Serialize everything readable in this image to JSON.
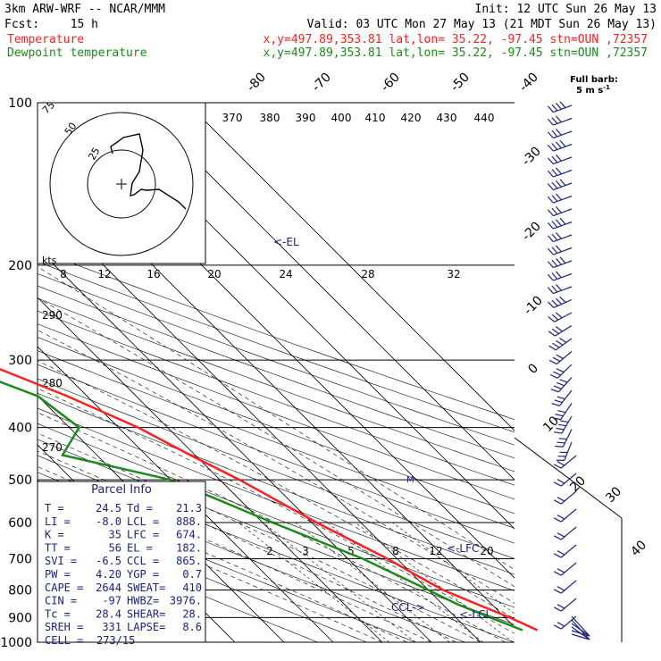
{
  "header": {
    "model": "3km ARW-WRF -- NCAR/MMM",
    "init": "Init: 12 UTC Sun 26 May 13",
    "fcst_label": "Fcst:",
    "fcst_value": "15 h",
    "valid": "Valid: 03 UTC Mon 27 May 13 (21 MDT Sun 26 May 13)",
    "temp_label": "Temperature",
    "dew_label": "Dewpoint temperature",
    "location": "x,y=497.89,353.81   lat,lon= 35.22, -97.45   stn=OUN ,72357"
  },
  "colors": {
    "temperature": "#ff2020",
    "dewpoint": "#1a8a1a",
    "grid": "#000000",
    "info_text": "#1a237e",
    "barb": "#1a237e"
  },
  "barb_legend": {
    "title": "Full barb:",
    "value": "5 m s",
    "exp": "-1"
  },
  "chart_data": {
    "type": "skew-t log-p",
    "pressure_levels": [
      100,
      200,
      300,
      400,
      500,
      600,
      700,
      800,
      900,
      1000
    ],
    "isotherm_labels": [
      "-80",
      "-70",
      "-60",
      "-50",
      "-40",
      "-30",
      "-20",
      "-10",
      "0",
      "10",
      "20",
      "30",
      "40"
    ],
    "theta_labels": [
      "370",
      "380",
      "390",
      "400",
      "410",
      "420",
      "430",
      "440"
    ],
    "mixing_ratio_labels": [
      "2",
      "3",
      "5",
      "8",
      "12",
      "20"
    ],
    "temperature_profile": [
      {
        "p": 100,
        "t": -65
      },
      {
        "p": 130,
        "t": -62
      },
      {
        "p": 160,
        "t": -59
      },
      {
        "p": 180,
        "t": -57
      },
      {
        "p": 190,
        "t": -58
      },
      {
        "p": 200,
        "t": -56
      },
      {
        "p": 250,
        "t": -45
      },
      {
        "p": 300,
        "t": -35
      },
      {
        "p": 350,
        "t": -24
      },
      {
        "p": 400,
        "t": -16
      },
      {
        "p": 450,
        "t": -11
      },
      {
        "p": 500,
        "t": -6
      },
      {
        "p": 600,
        "t": 1
      },
      {
        "p": 700,
        "t": 8
      },
      {
        "p": 760,
        "t": 11
      },
      {
        "p": 800,
        "t": 13
      },
      {
        "p": 850,
        "t": 17
      },
      {
        "p": 900,
        "t": 21
      },
      {
        "p": 950,
        "t": 24
      }
    ],
    "dewpoint_profile": [
      {
        "p": 100,
        "td": -85
      },
      {
        "p": 140,
        "td": -81
      },
      {
        "p": 170,
        "td": -79
      },
      {
        "p": 190,
        "td": -77
      },
      {
        "p": 200,
        "td": -75
      },
      {
        "p": 250,
        "td": -55
      },
      {
        "p": 300,
        "td": -42
      },
      {
        "p": 350,
        "td": -30
      },
      {
        "p": 400,
        "td": -28
      },
      {
        "p": 450,
        "td": -37
      },
      {
        "p": 500,
        "td": -20
      },
      {
        "p": 600,
        "td": -8
      },
      {
        "p": 700,
        "td": 3
      },
      {
        "p": 800,
        "td": 10
      },
      {
        "p": 850,
        "td": 13
      },
      {
        "p": 900,
        "td": 17
      },
      {
        "p": 950,
        "td": 21
      }
    ],
    "level_markers": [
      {
        "label": "<-EL",
        "p": 182
      },
      {
        "label": "<-LFC",
        "p": 674
      },
      {
        "label": "CCL->",
        "p": 865
      },
      {
        "label": "<-LCL",
        "p": 888
      }
    ],
    "hodograph": {
      "unit": "kts",
      "ring_labels": [
        "25",
        "50",
        "75"
      ],
      "speed_axis_labels": [
        "8",
        "12",
        "16",
        "20",
        "24",
        "28",
        "32"
      ]
    },
    "parcel_info_title": "Parcel Info",
    "parcel_info": [
      [
        "T  =",
        "24.5",
        "Td =",
        "21.3"
      ],
      [
        "LI =",
        "-8.0",
        "LCL =",
        "888."
      ],
      [
        "K  =",
        "35",
        "LFC =",
        "674."
      ],
      [
        "TT =",
        "56",
        "EL  =",
        "182."
      ],
      [
        "SVI =",
        "-6.5",
        "CCL =",
        "865."
      ],
      [
        "PW =",
        "4.20",
        "YGP =",
        "0.7"
      ],
      [
        "CAPE =",
        "2644",
        "SWEAT=",
        "410"
      ],
      [
        "CIN  =",
        "-97",
        "HWBZ=",
        "3976."
      ],
      [
        "Tc =",
        "28.4",
        "SHEAR=",
        "28."
      ],
      [
        "SREH =",
        "331",
        "LAPSE=",
        "8.6"
      ],
      [
        "CELL =",
        "273/15",
        "",
        ""
      ]
    ]
  }
}
